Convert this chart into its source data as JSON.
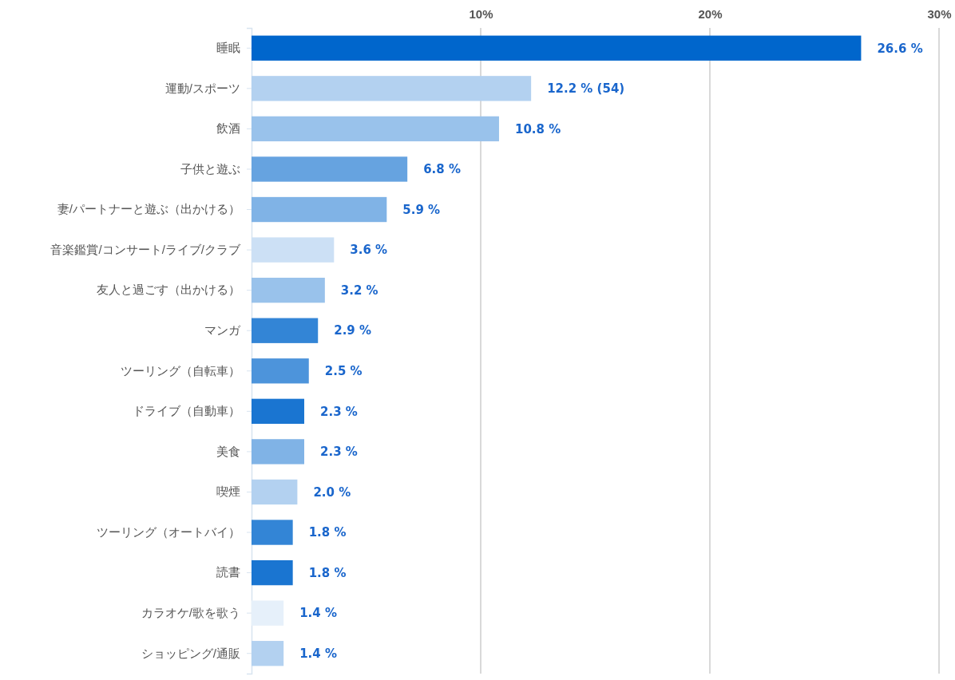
{
  "chart_data": {
    "type": "bar",
    "orientation": "horizontal",
    "categories": [
      "睡眠",
      "運動/スポーツ",
      "飲酒",
      "子供と遊ぶ",
      "妻/パートナーと遊ぶ（出かける）",
      "音楽鑑賞/コンサート/ライブ/クラブ",
      "友人と過ごす（出かける）",
      "マンガ",
      "ツーリング（自転車）",
      "ドライブ（自動車）",
      "美食",
      "喫煙",
      "ツーリング（オートバイ）",
      "読書",
      "カラオケ/歌を歌う",
      "ショッピング/通販"
    ],
    "values": [
      26.6,
      12.2,
      10.8,
      6.8,
      5.9,
      3.6,
      3.2,
      2.9,
      2.5,
      2.3,
      2.3,
      2.0,
      1.8,
      1.8,
      1.4,
      1.4
    ],
    "colors": [
      "#0066cc",
      "#b3d1f0",
      "#99c2eb",
      "#66a3e0",
      "#80b3e6",
      "#cce0f5",
      "#99c2eb",
      "#3385d6",
      "#4d94db",
      "#1a75d1",
      "#80b3e6",
      "#b3d1f0",
      "#3385d6",
      "#1a75d1",
      "#e6f0fa",
      "#b3d1f0"
    ],
    "value_labels": [
      "26.6 %",
      "12.2 % (54)",
      "10.8 %",
      "6.8 %",
      "5.9 %",
      "3.6 %",
      "3.2 %",
      "2.9 %",
      "2.5 %",
      "2.3 %",
      "2.3 %",
      "2.0 %",
      "1.8 %",
      "1.8 %",
      "1.4 %",
      "1.4 %"
    ],
    "xlim": [
      0,
      30
    ],
    "xticks": [
      {
        "value": 10,
        "label": "10%"
      },
      {
        "value": 20,
        "label": "20%"
      },
      {
        "value": 30,
        "label": "30%"
      }
    ],
    "grid": "x"
  }
}
